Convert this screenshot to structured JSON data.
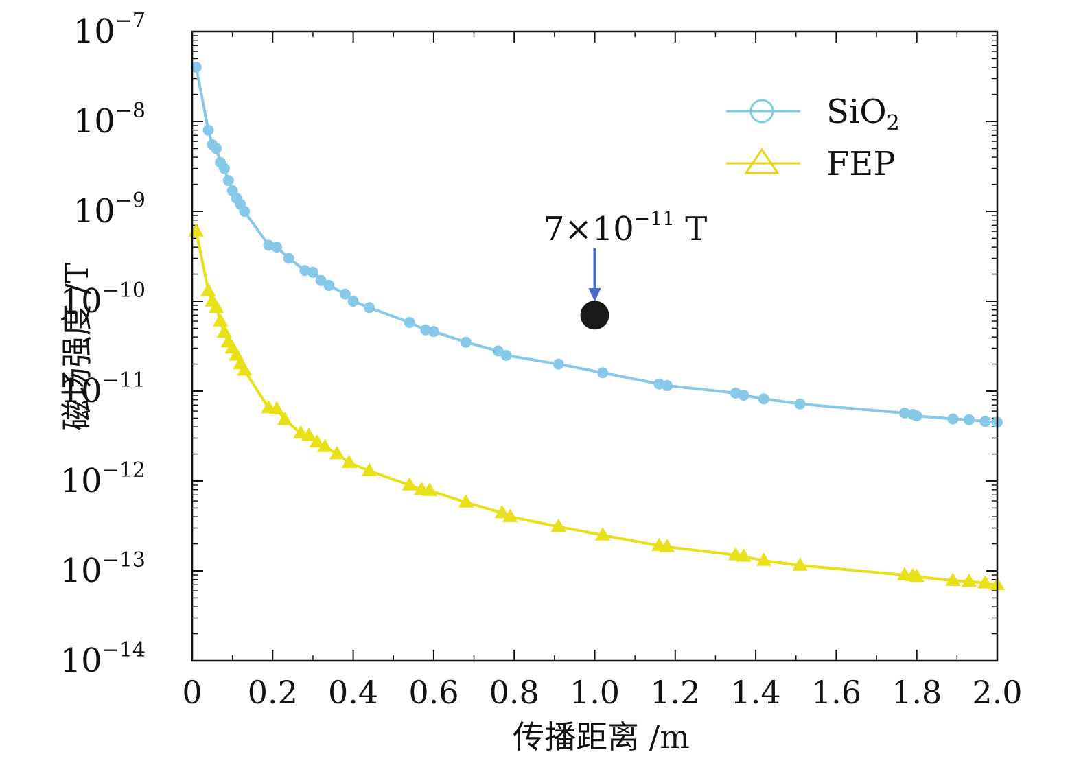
{
  "chart_data": {
    "type": "line",
    "xlabel": "传播距离 /m",
    "ylabel": "磁场强度 /T",
    "xlim": [
      0,
      2.0
    ],
    "ylim": [
      1e-14,
      1e-07
    ],
    "yscale": "log",
    "x_ticks": [
      "0",
      "0.2",
      "0.4",
      "0.6",
      "0.8",
      "1.0",
      "1.2",
      "1.4",
      "1.6",
      "1.8",
      "2.0"
    ],
    "y_ticks": [
      {
        "base": "10",
        "exp": "−7"
      },
      {
        "base": "10",
        "exp": "−8"
      },
      {
        "base": "10",
        "exp": "−9"
      },
      {
        "base": "10",
        "exp": "−10"
      },
      {
        "base": "10",
        "exp": "−11"
      },
      {
        "base": "10",
        "exp": "−12"
      },
      {
        "base": "10",
        "exp": "−13"
      },
      {
        "base": "10",
        "exp": "−14"
      }
    ],
    "legend": {
      "placement": "top-right",
      "entries": [
        {
          "base": "SiO",
          "sub": "2",
          "marker": "circle",
          "color": "#7ccfd8"
        },
        {
          "base": "FEP",
          "sub": "",
          "marker": "triangle",
          "color": "#e8d414"
        }
      ]
    },
    "series": [
      {
        "name": "SiO2",
        "color": "#88c8e8",
        "marker": "circle",
        "points": [
          [
            0.01,
            4e-08
          ],
          [
            0.04,
            8e-09
          ],
          [
            0.05,
            5.5e-09
          ],
          [
            0.06,
            5e-09
          ],
          [
            0.07,
            3.5e-09
          ],
          [
            0.08,
            3e-09
          ],
          [
            0.09,
            2.2e-09
          ],
          [
            0.1,
            1.7e-09
          ],
          [
            0.11,
            1.4e-09
          ],
          [
            0.12,
            1.2e-09
          ],
          [
            0.13,
            1e-09
          ],
          [
            0.19,
            4.2e-10
          ],
          [
            0.21,
            4e-10
          ],
          [
            0.24,
            3e-10
          ],
          [
            0.28,
            2.2e-10
          ],
          [
            0.3,
            2.1e-10
          ],
          [
            0.32,
            1.7e-10
          ],
          [
            0.34,
            1.5e-10
          ],
          [
            0.38,
            1.2e-10
          ],
          [
            0.4,
            1e-10
          ],
          [
            0.44,
            8.5e-11
          ],
          [
            0.54,
            5.8e-11
          ],
          [
            0.58,
            4.8e-11
          ],
          [
            0.6,
            4.6e-11
          ],
          [
            0.68,
            3.5e-11
          ],
          [
            0.76,
            2.8e-11
          ],
          [
            0.78,
            2.5e-11
          ],
          [
            0.91,
            2e-11
          ],
          [
            1.02,
            1.6e-11
          ],
          [
            1.16,
            1.2e-11
          ],
          [
            1.18,
            1.15e-11
          ],
          [
            1.35,
            9.5e-12
          ],
          [
            1.37,
            9e-12
          ],
          [
            1.42,
            8.2e-12
          ],
          [
            1.51,
            7.2e-12
          ],
          [
            1.77,
            5.7e-12
          ],
          [
            1.79,
            5.5e-12
          ],
          [
            1.8,
            5.3e-12
          ],
          [
            1.89,
            4.9e-12
          ],
          [
            1.93,
            4.8e-12
          ],
          [
            1.97,
            4.6e-12
          ],
          [
            2.0,
            4.5e-12
          ]
        ]
      },
      {
        "name": "FEP",
        "color": "#e8e018",
        "marker": "triangle",
        "points": [
          [
            0.01,
            6e-10
          ],
          [
            0.04,
            1.3e-10
          ],
          [
            0.05,
            1e-10
          ],
          [
            0.06,
            8.5e-11
          ],
          [
            0.07,
            6e-11
          ],
          [
            0.08,
            4.5e-11
          ],
          [
            0.09,
            3.5e-11
          ],
          [
            0.1,
            3e-11
          ],
          [
            0.11,
            2.5e-11
          ],
          [
            0.12,
            2e-11
          ],
          [
            0.13,
            1.7e-11
          ],
          [
            0.19,
            6.5e-12
          ],
          [
            0.21,
            6.3e-12
          ],
          [
            0.23,
            4.8e-12
          ],
          [
            0.27,
            3.4e-12
          ],
          [
            0.29,
            3.2e-12
          ],
          [
            0.31,
            2.7e-12
          ],
          [
            0.33,
            2.4e-12
          ],
          [
            0.36,
            2e-12
          ],
          [
            0.39,
            1.6e-12
          ],
          [
            0.44,
            1.3e-12
          ],
          [
            0.54,
            9e-13
          ],
          [
            0.57,
            8e-13
          ],
          [
            0.59,
            7.8e-13
          ],
          [
            0.68,
            5.8e-13
          ],
          [
            0.77,
            4.4e-13
          ],
          [
            0.79,
            4e-13
          ],
          [
            0.91,
            3.1e-13
          ],
          [
            1.02,
            2.5e-13
          ],
          [
            1.16,
            1.9e-13
          ],
          [
            1.18,
            1.85e-13
          ],
          [
            1.35,
            1.5e-13
          ],
          [
            1.37,
            1.45e-13
          ],
          [
            1.42,
            1.3e-13
          ],
          [
            1.51,
            1.15e-13
          ],
          [
            1.77,
            9e-14
          ],
          [
            1.79,
            8.8e-14
          ],
          [
            1.8,
            8.6e-14
          ],
          [
            1.89,
            7.8e-14
          ],
          [
            1.93,
            7.6e-14
          ],
          [
            1.97,
            7.3e-14
          ],
          [
            2.0,
            7e-14
          ]
        ]
      }
    ],
    "annotations": [
      {
        "x": 1.0,
        "y": 7e-11,
        "mantissa": "7×10",
        "exp": "−11",
        "unit": " T",
        "marker_color": "#1a1a1a",
        "arrow_color": "#4a6cc4"
      }
    ]
  }
}
